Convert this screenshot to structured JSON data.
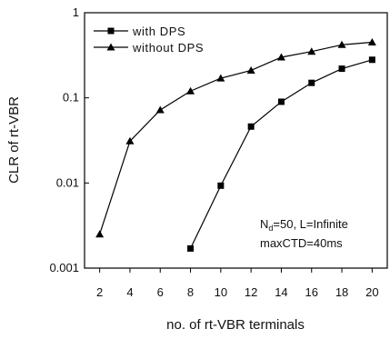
{
  "chart_data": {
    "type": "line",
    "title": "",
    "xlabel": "no. of rt-VBR terminals",
    "ylabel": "CLR of rt-VBR",
    "x_ticks": [
      2,
      4,
      6,
      8,
      10,
      12,
      14,
      16,
      18,
      20
    ],
    "y_ticks": [
      {
        "value": 0.001,
        "label": "0.001"
      },
      {
        "value": 0.01,
        "label": "0.01"
      },
      {
        "value": 0.1,
        "label": "0.1"
      },
      {
        "value": 1,
        "label": "1"
      }
    ],
    "xlim": [
      1,
      21
    ],
    "ylim": [
      0.001,
      1
    ],
    "y_scale": "log",
    "legend_position": "top-left",
    "series": [
      {
        "name": "with DPS",
        "marker": "square",
        "x": [
          8,
          10,
          12,
          14,
          16,
          18,
          20
        ],
        "y": [
          0.0017,
          0.0093,
          0.046,
          0.09,
          0.15,
          0.22,
          0.28
        ]
      },
      {
        "name": "without DPS",
        "marker": "triangle",
        "x": [
          2,
          4,
          6,
          8,
          10,
          12,
          14,
          16,
          18,
          20
        ],
        "y": [
          0.0025,
          0.031,
          0.072,
          0.12,
          0.17,
          0.21,
          0.3,
          0.35,
          0.42,
          0.45
        ]
      }
    ],
    "annotation": {
      "line1_main": "N",
      "line1_sub": "d",
      "line1_rest": "=50, L=Infinite",
      "line2": "maxCTD=40ms"
    }
  }
}
